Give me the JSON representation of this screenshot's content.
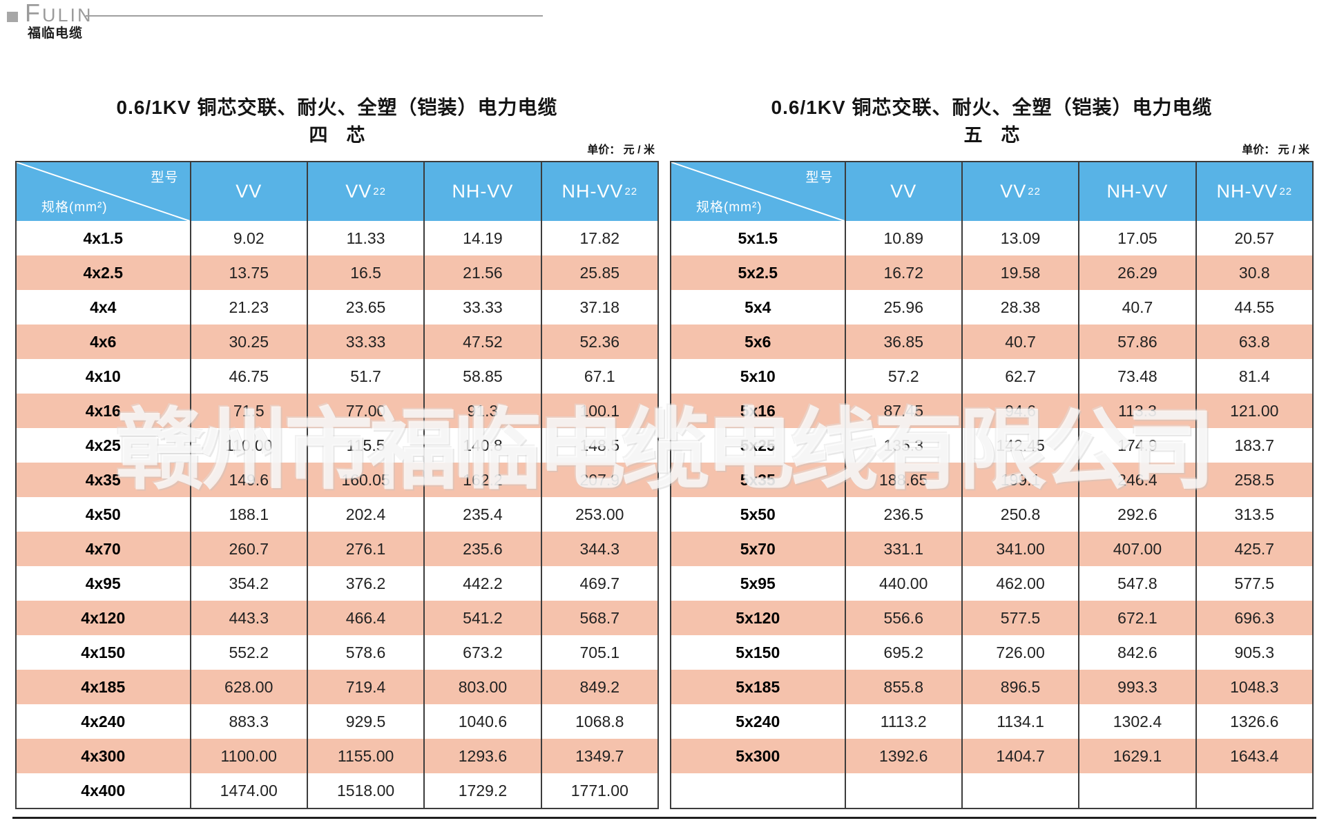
{
  "logo": {
    "brand_en": "FULIN",
    "brand_cn": "福临电缆"
  },
  "watermark": "赣州市福临电缆电线有限公司",
  "colors": {
    "header_blue": "#58b3e6",
    "row_pink": "#f5c2ac",
    "border": "#3c3c3c"
  },
  "tables": [
    {
      "title": "0.6/1KV 铜芯交联、耐火、全塑（铠装）电力电缆",
      "subtitle": "四　芯",
      "unit_label": "单价：  元 / 米",
      "corner": {
        "model_label": "型号",
        "spec_label": "规格(mm²)"
      },
      "columns": [
        {
          "name": "VV",
          "sub": ""
        },
        {
          "name": "VV",
          "sub": "22"
        },
        {
          "name": "NH-VV",
          "sub": ""
        },
        {
          "name": "NH-VV",
          "sub": "22"
        }
      ],
      "rows": [
        {
          "spec": "4x1.5",
          "values": [
            "9.02",
            "11.33",
            "14.19",
            "17.82"
          ]
        },
        {
          "spec": "4x2.5",
          "values": [
            "13.75",
            "16.5",
            "21.56",
            "25.85"
          ]
        },
        {
          "spec": "4x4",
          "values": [
            "21.23",
            "23.65",
            "33.33",
            "37.18"
          ]
        },
        {
          "spec": "4x6",
          "values": [
            "30.25",
            "33.33",
            "47.52",
            "52.36"
          ]
        },
        {
          "spec": "4x10",
          "values": [
            "46.75",
            "51.7",
            "58.85",
            "67.1"
          ]
        },
        {
          "spec": "4x16",
          "values": [
            "71.5",
            "77.00",
            "91.3",
            "100.1"
          ]
        },
        {
          "spec": "4x25",
          "values": [
            "110.00",
            "115.5",
            "140.8",
            "148.5"
          ]
        },
        {
          "spec": "4x35",
          "values": [
            "149.6",
            "160.05",
            "162.2",
            "207.9"
          ]
        },
        {
          "spec": "4x50",
          "values": [
            "188.1",
            "202.4",
            "235.4",
            "253.00"
          ]
        },
        {
          "spec": "4x70",
          "values": [
            "260.7",
            "276.1",
            "235.6",
            "344.3"
          ]
        },
        {
          "spec": "4x95",
          "values": [
            "354.2",
            "376.2",
            "442.2",
            "469.7"
          ]
        },
        {
          "spec": "4x120",
          "values": [
            "443.3",
            "466.4",
            "541.2",
            "568.7"
          ]
        },
        {
          "spec": "4x150",
          "values": [
            "552.2",
            "578.6",
            "673.2",
            "705.1"
          ]
        },
        {
          "spec": "4x185",
          "values": [
            "628.00",
            "719.4",
            "803.00",
            "849.2"
          ]
        },
        {
          "spec": "4x240",
          "values": [
            "883.3",
            "929.5",
            "1040.6",
            "1068.8"
          ]
        },
        {
          "spec": "4x300",
          "values": [
            "1100.00",
            "1155.00",
            "1293.6",
            "1349.7"
          ]
        },
        {
          "spec": "4x400",
          "values": [
            "1474.00",
            "1518.00",
            "1729.2",
            "1771.00"
          ]
        }
      ]
    },
    {
      "title": "0.6/1KV 铜芯交联、耐火、全塑（铠装）电力电缆",
      "subtitle": "五　芯",
      "unit_label": "单价：  元 / 米",
      "corner": {
        "model_label": "型号",
        "spec_label": "规格(mm²)"
      },
      "columns": [
        {
          "name": "VV",
          "sub": ""
        },
        {
          "name": "VV",
          "sub": "22"
        },
        {
          "name": "NH-VV",
          "sub": ""
        },
        {
          "name": "NH-VV",
          "sub": "22"
        }
      ],
      "rows": [
        {
          "spec": "5x1.5",
          "values": [
            "10.89",
            "13.09",
            "17.05",
            "20.57"
          ]
        },
        {
          "spec": "5x2.5",
          "values": [
            "16.72",
            "19.58",
            "26.29",
            "30.8"
          ]
        },
        {
          "spec": "5x4",
          "values": [
            "25.96",
            "28.38",
            "40.7",
            "44.55"
          ]
        },
        {
          "spec": "5x6",
          "values": [
            "36.85",
            "40.7",
            "57.86",
            "63.8"
          ]
        },
        {
          "spec": "5x10",
          "values": [
            "57.2",
            "62.7",
            "73.48",
            "81.4"
          ]
        },
        {
          "spec": "5x16",
          "values": [
            "87.45",
            "94.6",
            "113.3",
            "121.00"
          ]
        },
        {
          "spec": "5x25",
          "values": [
            "135.3",
            "142.45",
            "174.9",
            "183.7"
          ]
        },
        {
          "spec": "5x35",
          "values": [
            "188.65",
            "199.1",
            "246.4",
            "258.5"
          ]
        },
        {
          "spec": "5x50",
          "values": [
            "236.5",
            "250.8",
            "292.6",
            "313.5"
          ]
        },
        {
          "spec": "5x70",
          "values": [
            "331.1",
            "341.00",
            "407.00",
            "425.7"
          ]
        },
        {
          "spec": "5x95",
          "values": [
            "440.00",
            "462.00",
            "547.8",
            "577.5"
          ]
        },
        {
          "spec": "5x120",
          "values": [
            "556.6",
            "577.5",
            "672.1",
            "696.3"
          ]
        },
        {
          "spec": "5x150",
          "values": [
            "695.2",
            "726.00",
            "842.6",
            "905.3"
          ]
        },
        {
          "spec": "5x185",
          "values": [
            "855.8",
            "896.5",
            "993.3",
            "1048.3"
          ]
        },
        {
          "spec": "5x240",
          "values": [
            "1113.2",
            "1134.1",
            "1302.4",
            "1326.6"
          ]
        },
        {
          "spec": "5x300",
          "values": [
            "1392.6",
            "1404.7",
            "1629.1",
            "1643.4"
          ]
        },
        {
          "spec": "",
          "values": [
            "",
            "",
            "",
            ""
          ]
        }
      ]
    }
  ]
}
